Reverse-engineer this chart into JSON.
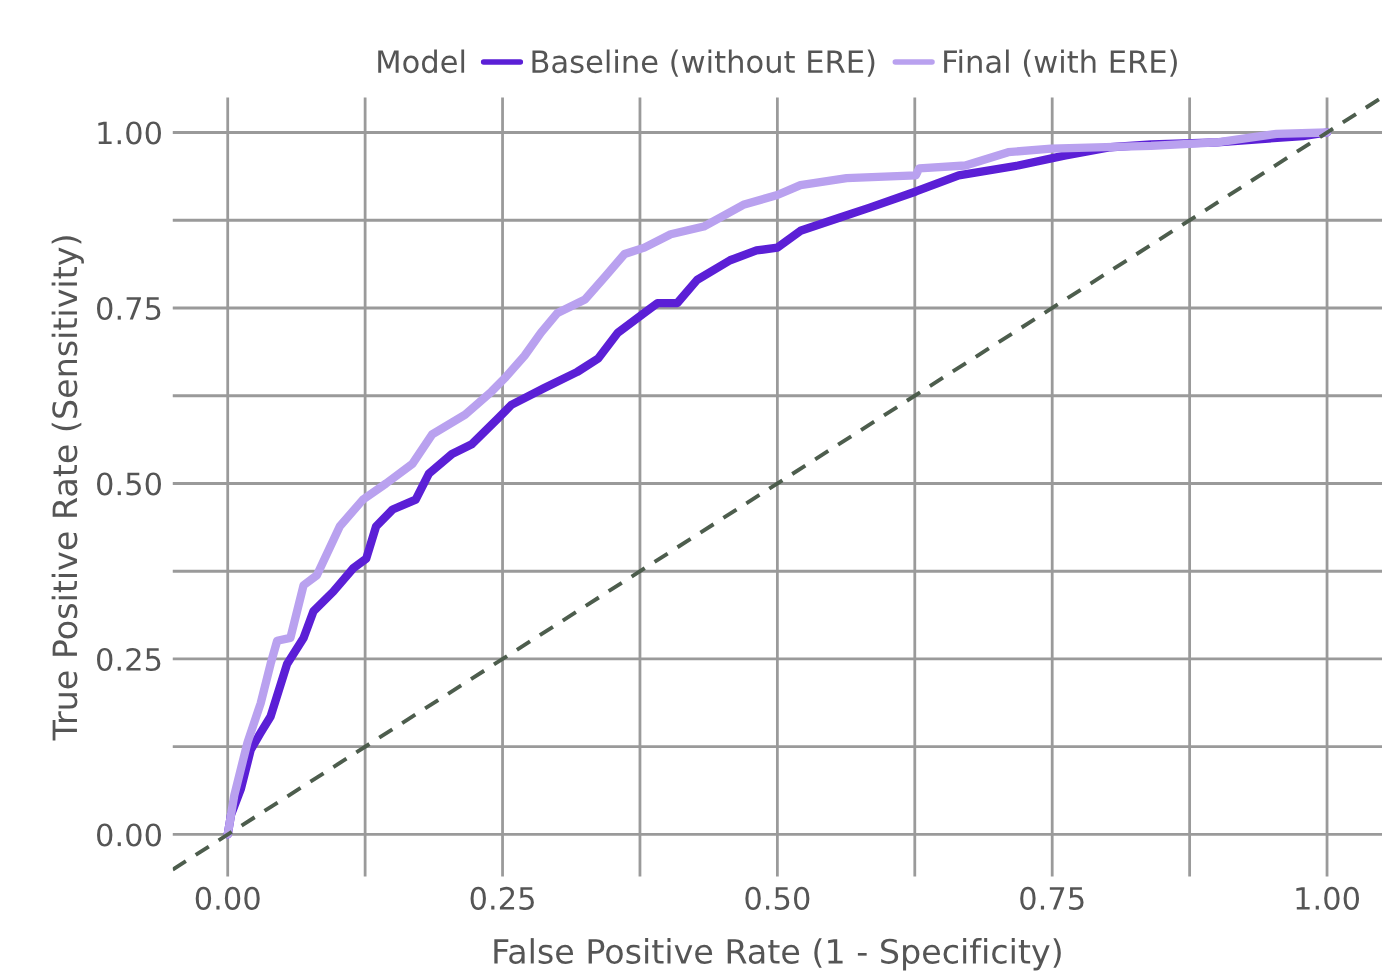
{
  "chart_data": {
    "type": "line",
    "xlabel": "False Positive Rate (1 - Specificity)",
    "ylabel": "True Positive Rate (Sensitivity)",
    "legend_title": "Model",
    "series": [
      {
        "name": "Baseline (without ERE)",
        "color": "#5b1fd6",
        "x": [
          0,
          0.003,
          0.012,
          0.021,
          0.03,
          0.039,
          0.054,
          0.069,
          0.078,
          0.096,
          0.114,
          0.126,
          0.135,
          0.15,
          0.171,
          0.183,
          0.204,
          0.222,
          0.246,
          0.258,
          0.288,
          0.318,
          0.337,
          0.355,
          0.379,
          0.391,
          0.409,
          0.427,
          0.457,
          0.481,
          0.5,
          0.521,
          0.557,
          0.584,
          0.626,
          0.665,
          0.719,
          0.761,
          0.803,
          0.84,
          0.9,
          0.978,
          1
        ],
        "values": [
          0,
          0.028,
          0.065,
          0.121,
          0.145,
          0.168,
          0.243,
          0.28,
          0.318,
          0.346,
          0.379,
          0.393,
          0.439,
          0.463,
          0.477,
          0.514,
          0.542,
          0.556,
          0.593,
          0.612,
          0.636,
          0.659,
          0.678,
          0.715,
          0.743,
          0.757,
          0.757,
          0.79,
          0.818,
          0.832,
          0.836,
          0.86,
          0.879,
          0.893,
          0.916,
          0.939,
          0.953,
          0.967,
          0.979,
          0.983,
          0.986,
          0.995,
          1
        ]
      },
      {
        "name": "Final (with ERE)",
        "color": "#b9a1ef",
        "x": [
          0,
          0.006,
          0.018,
          0.03,
          0.039,
          0.045,
          0.057,
          0.069,
          0.081,
          0.102,
          0.123,
          0.144,
          0.168,
          0.186,
          0.216,
          0.24,
          0.252,
          0.27,
          0.285,
          0.3,
          0.325,
          0.343,
          0.361,
          0.379,
          0.403,
          0.433,
          0.469,
          0.5,
          0.521,
          0.563,
          0.626,
          0.629,
          0.671,
          0.71,
          0.749,
          0.84,
          0.9,
          0.954,
          1
        ],
        "values": [
          0,
          0.056,
          0.131,
          0.187,
          0.243,
          0.276,
          0.28,
          0.355,
          0.369,
          0.439,
          0.477,
          0.5,
          0.528,
          0.57,
          0.598,
          0.631,
          0.65,
          0.682,
          0.715,
          0.743,
          0.762,
          0.794,
          0.827,
          0.836,
          0.855,
          0.866,
          0.897,
          0.911,
          0.925,
          0.935,
          0.939,
          0.949,
          0.953,
          0.972,
          0.977,
          0.981,
          0.986,
          0.998,
          1
        ]
      },
      {
        "color": "#4d5d4d",
        "line_style": "dashed",
        "x": [
          -0.05,
          1.05
        ],
        "values": [
          -0.05,
          1.05
        ]
      }
    ],
    "xlim": [
      -0.05,
      1.05
    ],
    "ylim": [
      -0.06,
      1.05
    ],
    "xticks": [
      {
        "value": 0,
        "label": "0.00"
      },
      {
        "value": 0.125,
        "label": null
      },
      {
        "value": 0.25,
        "label": "0.25"
      },
      {
        "value": 0.375,
        "label": null
      },
      {
        "value": 0.5,
        "label": "0.50"
      },
      {
        "value": 0.625,
        "label": null
      },
      {
        "value": 0.75,
        "label": "0.75"
      },
      {
        "value": 0.875,
        "label": null
      },
      {
        "value": 1,
        "label": "1.00"
      }
    ],
    "yticks": [
      {
        "value": 0,
        "label": "0.00"
      },
      {
        "value": 0.125,
        "label": null
      },
      {
        "value": 0.25,
        "label": "0.25"
      },
      {
        "value": 0.375,
        "label": null
      },
      {
        "value": 0.5,
        "label": "0.50"
      },
      {
        "value": 0.625,
        "label": null
      },
      {
        "value": 0.75,
        "label": "0.75"
      },
      {
        "value": 0.875,
        "label": null
      },
      {
        "value": 1,
        "label": "1.00"
      }
    ],
    "grid": true,
    "legend": "top",
    "marker": "none",
    "line_style": "solid"
  }
}
